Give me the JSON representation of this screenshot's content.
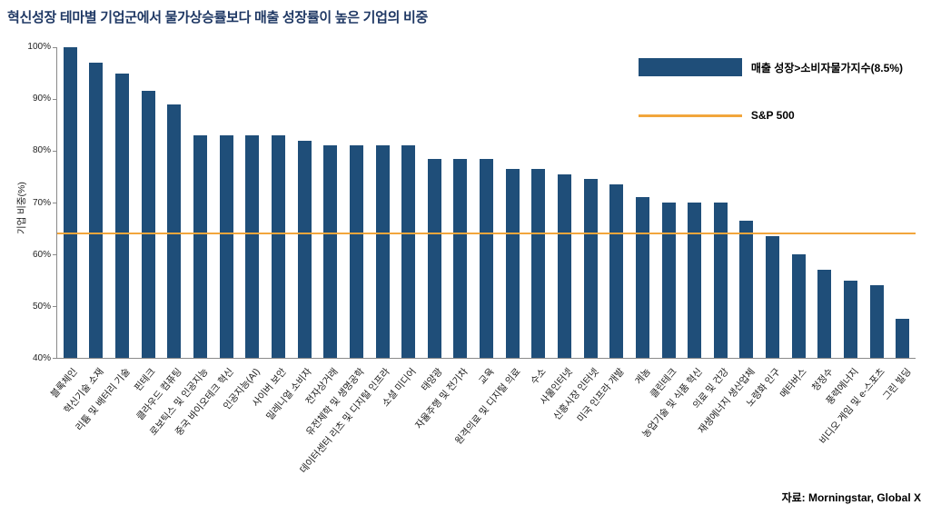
{
  "title": "혁신성장 테마별 기업군에서 물가상승률보다 매출 성장률이 높은 기업의 비중",
  "source": "자료: Morningstar, Global X",
  "chart_data": {
    "type": "bar",
    "title": "혁신성장 테마별 기업군에서 물가상승률보다 매출 성장률이 높은 기업의 비중",
    "xlabel": "",
    "ylabel": "기업 비중(%)",
    "ylim": [
      40,
      100
    ],
    "yticks": [
      40,
      50,
      60,
      70,
      80,
      90,
      100
    ],
    "ytick_suffix": "%",
    "grid": false,
    "legend_position": "top-right",
    "legend": {
      "bar_label": "매출 성장>소비자물가지수(8.5%)",
      "line_label": "S&P 500"
    },
    "reference_line": {
      "name": "S&P 500",
      "value": 64
    },
    "colors": {
      "bar": "#1F4E79",
      "sp500_line": "#F2A63C",
      "title": "#1F3864"
    },
    "categories": [
      "블록체인",
      "혁신기술 소재",
      "리튬 및 배터리 기술",
      "핀테크",
      "클라우드 컴퓨팅",
      "로보틱스 및 인공지능",
      "중국 바이오테크 혁신",
      "인공지능(AI)",
      "사이버 보안",
      "밀레니얼 소비자",
      "전자상거래",
      "유전체학 및 생명공학",
      "데이터센터 리츠 및 디지털 인프라",
      "소셜 미디어",
      "태양광",
      "자율주행 및 전기차",
      "교육",
      "원격의료 및 디지털 의료",
      "수소",
      "사물인터넷",
      "신흥시장 인터넷",
      "미국 인프라 개발",
      "게놈",
      "클린테크",
      "농업기술 및 식품 혁신",
      "의료 및 건강",
      "재생에너지 생산업체",
      "노령화 인구",
      "메타버스",
      "청정수",
      "풍력에너지",
      "비디오 게임 및 e-스포츠",
      "그린 빌딩"
    ],
    "values": [
      100,
      97,
      95,
      91.5,
      89,
      83,
      83,
      83,
      83,
      82,
      81,
      81,
      81,
      81,
      78.5,
      78.5,
      78.5,
      76.5,
      76.5,
      75.5,
      74.5,
      73.5,
      71,
      70,
      70,
      70,
      66.5,
      63.5,
      60,
      57,
      55,
      54,
      47.5
    ]
  }
}
